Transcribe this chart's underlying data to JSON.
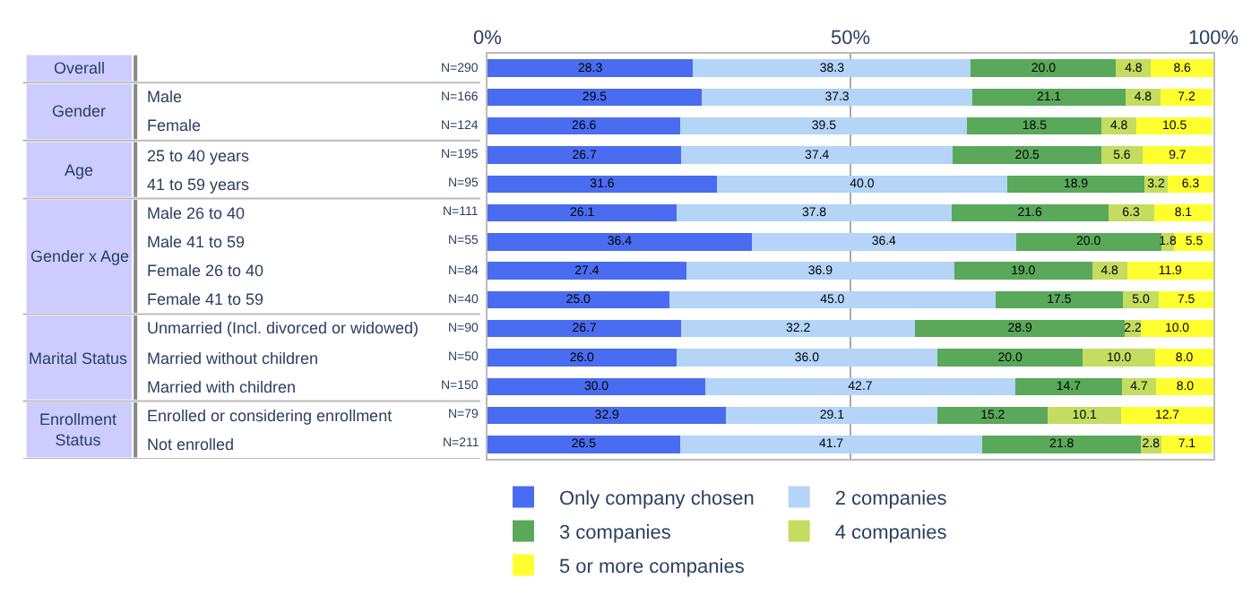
{
  "chart_data": {
    "type": "bar",
    "orientation": "horizontal",
    "stacked": true,
    "categories": [
      null,
      "Male",
      "Female",
      "25 to 40 years",
      "41 to 59 years",
      "Male 26 to 40",
      "Male 41 to 59",
      "Female 26 to 40",
      "Female 41 to 59",
      "Unmarried (Incl. divorced or widowed)",
      "Married without children",
      "Married with children",
      "Enrolled or considering enrollment",
      "Not enrolled"
    ],
    "y2_categories": [
      "N=290",
      "N=166",
      "N=124",
      "N=195",
      "N=95",
      "N=111",
      "N=55",
      "N=84",
      "N=40",
      "N=90",
      "N=50",
      "N=150",
      "N=79",
      "N=211"
    ],
    "annotations": [
      "Overall",
      "Gender",
      "Age",
      "Gender x Age",
      "Marital Status",
      "Enrollment Status"
    ],
    "xlim": [
      0,
      100
    ],
    "xticks": [
      {
        "value": 0,
        "label": "0%"
      },
      {
        "value": 50,
        "label": "50%"
      },
      {
        "value": 100,
        "label": "100%"
      }
    ],
    "grid": "x",
    "legend": "bottom",
    "series": [
      {
        "name": "Only company chosen",
        "color": "#4a6cf0",
        "values": [
          28.3,
          29.5,
          26.6,
          26.7,
          31.6,
          26.1,
          36.4,
          27.4,
          25.0,
          26.7,
          26.0,
          30.0,
          32.9,
          26.5
        ],
        "value_labels": [
          "28.3",
          "29.5",
          "26.6",
          "26.7",
          "31.6",
          "26.1",
          "36.4",
          "27.4",
          "25.0",
          "26.7",
          "26.0",
          "30.0",
          "32.9",
          "26.5"
        ]
      },
      {
        "name": "2 companies",
        "color": "#b4d4f8",
        "values": [
          38.3,
          37.3,
          39.5,
          37.4,
          40.0,
          37.8,
          36.4,
          36.9,
          45.0,
          32.2,
          36.0,
          42.7,
          29.1,
          41.7
        ],
        "value_labels": [
          "38.3",
          "37.3",
          "39.5",
          "37.4",
          "40.0",
          "37.8",
          "36.4",
          "36.9",
          "45.0",
          "32.2",
          "36.0",
          "42.7",
          "29.1",
          "41.7"
        ]
      },
      {
        "name": "3 companies",
        "color": "#5aa85a",
        "values": [
          20.0,
          21.1,
          18.5,
          20.5,
          18.9,
          21.6,
          20.0,
          19.0,
          17.5,
          28.9,
          20.0,
          14.7,
          15.2,
          21.8
        ],
        "value_labels": [
          "20.0",
          "21.1",
          "18.5",
          "20.5",
          "18.9",
          "21.6",
          "20.0",
          "19.0",
          "17.5",
          "28.9",
          "20.0",
          "14.7",
          "15.2",
          "21.8"
        ]
      },
      {
        "name": "4 companies",
        "color": "#c4dc60",
        "values": [
          4.8,
          4.8,
          4.8,
          5.6,
          3.2,
          6.3,
          1.8,
          4.8,
          5.0,
          2.2,
          10.0,
          4.7,
          10.1,
          2.8
        ],
        "value_labels": [
          "4.8",
          "4.8",
          "4.8",
          "5.6",
          "3.2",
          "6.3",
          "1.8",
          "4.8",
          "5.0",
          "2.2",
          "10.0",
          "4.7",
          "10.1",
          "2.8"
        ]
      },
      {
        "name": "5 or more companies",
        "color": "#ffff30",
        "values": [
          8.6,
          7.2,
          10.5,
          9.7,
          6.3,
          8.1,
          5.5,
          11.9,
          7.5,
          10.0,
          8.0,
          8.0,
          12.7,
          7.1
        ],
        "value_labels": [
          "8.6",
          "7.2",
          "10.5",
          "9.7",
          "6.3",
          "8.1",
          "5.5",
          "11.9",
          "7.5",
          "10.0",
          "8.0",
          "8.0",
          "12.7",
          "7.1"
        ]
      }
    ]
  }
}
